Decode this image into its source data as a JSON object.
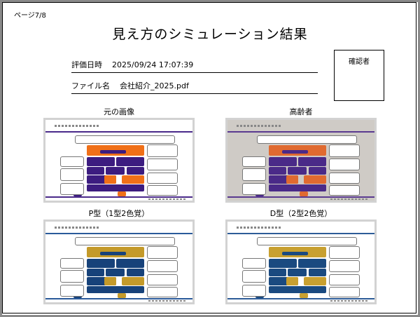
{
  "page_indicator": "ページ7/8",
  "title": "見え方のシミュレーション結果",
  "evaluation": {
    "label": "評価日時",
    "value": "2025/09/24 17:07:39"
  },
  "file": {
    "label": "ファイル名",
    "value": "会社紹介_2025.pdf"
  },
  "reviewer_box_label": "確認者",
  "simulations": [
    {
      "caption": "元の画像",
      "colors": {
        "bg": "#ffffff",
        "primary": "#3c1c80",
        "accent": "#f07018",
        "line": "#4a2a8a"
      }
    },
    {
      "caption": "高齢者",
      "colors": {
        "bg": "#cfcbc6",
        "primary": "#4a2a88",
        "accent": "#e06a30",
        "line": "#5a3a90"
      }
    },
    {
      "caption": "P型（1型2色覚）",
      "colors": {
        "bg": "#ffffff",
        "primary": "#17427a",
        "accent": "#c49a2a",
        "line": "#2a5a9a"
      }
    },
    {
      "caption": "D型（2型2色覚）",
      "colors": {
        "bg": "#ffffff",
        "primary": "#1a4a80",
        "accent": "#c8a030",
        "line": "#2d5c98"
      }
    }
  ]
}
